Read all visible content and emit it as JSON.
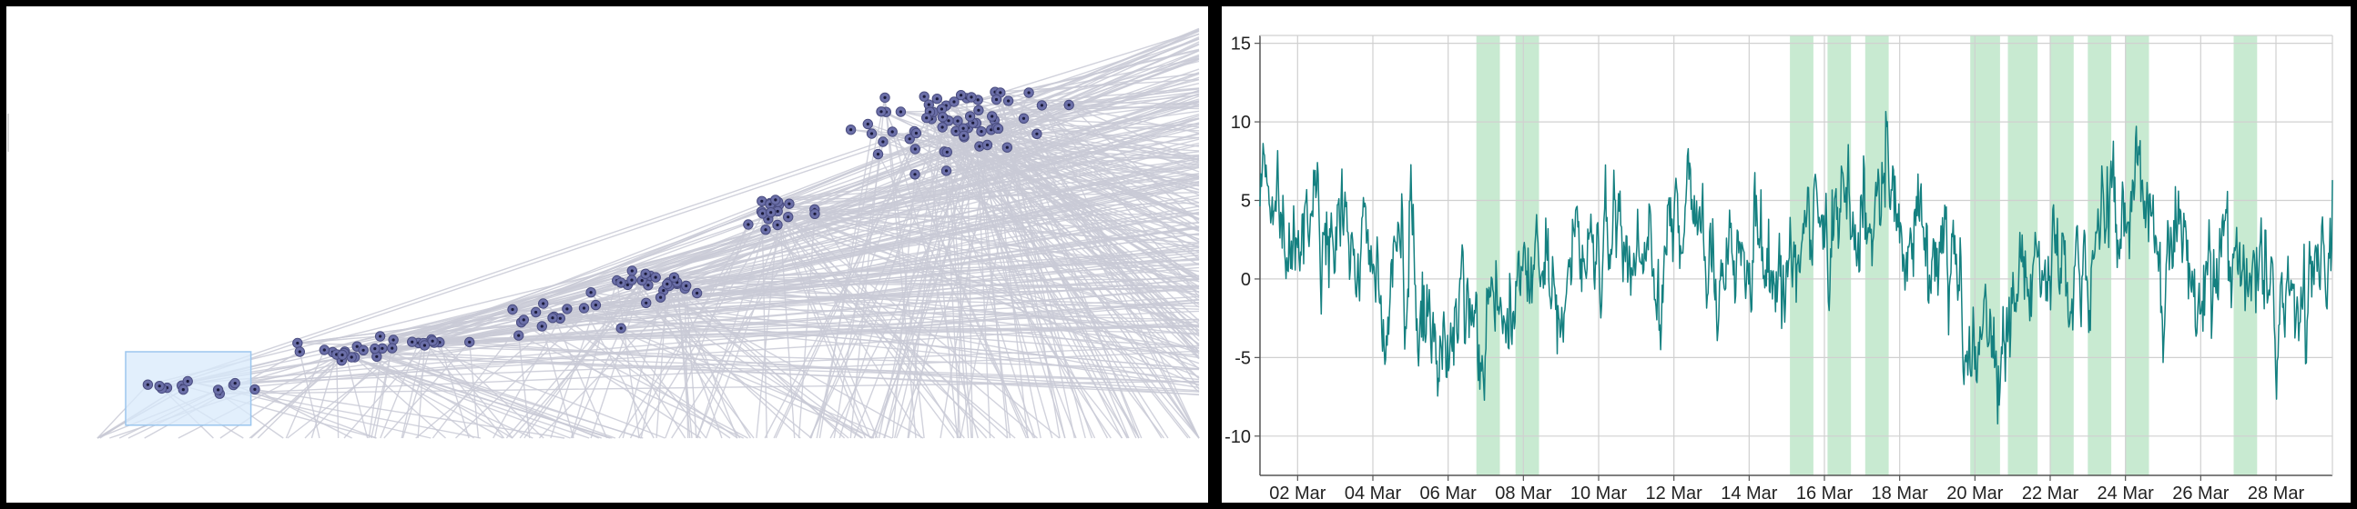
{
  "colors": {
    "background": "#000000",
    "panel": "#ffffff",
    "node_fill": "#6b6fa8",
    "node_center": "#1a1a3a",
    "edge": "#c9cad6",
    "selection_fill": "#d8eafb",
    "selection_stroke": "#9cc6ee",
    "line": "#148080",
    "band": "#b5e3c2",
    "grid": "#d0d0d0",
    "axis": "#555555"
  },
  "chart_data": [
    {
      "type": "scatter",
      "name": "graph-overview",
      "x_range": [
        0,
        100
      ],
      "y_range": [
        0,
        100
      ],
      "selection": {
        "x": [
          10,
          20.5
        ],
        "y": [
          3,
          20
        ]
      },
      "clusters": [
        {
          "cx": 16,
          "cy": 11.5,
          "sx": 3.5,
          "sy": 1.5,
          "n": 12
        },
        {
          "cx": 28,
          "cy": 20,
          "sx": 3.5,
          "sy": 1.8,
          "n": 16
        },
        {
          "cx": 34,
          "cy": 22,
          "sx": 3.0,
          "sy": 2.2,
          "n": 14
        },
        {
          "cx": 45,
          "cy": 28,
          "sx": 3.5,
          "sy": 2.8,
          "n": 14
        },
        {
          "cx": 55,
          "cy": 36,
          "sx": 4.0,
          "sy": 2.8,
          "n": 24
        },
        {
          "cx": 65,
          "cy": 52,
          "sx": 2.5,
          "sy": 3.0,
          "n": 18
        },
        {
          "cx": 79,
          "cy": 73,
          "sx": 6.5,
          "sy": 7.0,
          "n": 65
        }
      ]
    },
    {
      "type": "line",
      "name": "time-series",
      "x_start": "2024-03-01",
      "x_end": "2024-03-29T12:00",
      "ylim": [
        -12.5,
        15.5
      ],
      "yticks": [
        15,
        10,
        5,
        0,
        -5,
        -10
      ],
      "ytick_labels": [
        "15",
        "10",
        "5",
        "0",
        "-5",
        "-10"
      ],
      "xtick_dates": [
        "2024-03-02",
        "2024-03-04",
        "2024-03-06",
        "2024-03-08",
        "2024-03-10",
        "2024-03-12",
        "2024-03-14",
        "2024-03-16",
        "2024-03-18",
        "2024-03-20",
        "2024-03-22",
        "2024-03-24",
        "2024-03-26",
        "2024-03-28"
      ],
      "xtick_labels": [
        "02 Mar",
        "04 Mar",
        "06 Mar",
        "08 Mar",
        "10 Mar",
        "12 Mar",
        "14 Mar",
        "16 Mar",
        "18 Mar",
        "20 Mar",
        "22 Mar",
        "24 Mar",
        "26 Mar",
        "28 Mar"
      ],
      "bands": [
        [
          "2024-03-06T18:00",
          "2024-03-07T09:00"
        ],
        [
          "2024-03-07T19:00",
          "2024-03-08T10:00"
        ],
        [
          "2024-03-15T02:00",
          "2024-03-15T17:00"
        ],
        [
          "2024-03-16T02:00",
          "2024-03-16T17:00"
        ],
        [
          "2024-03-17T02:00",
          "2024-03-17T17:00"
        ],
        [
          "2024-03-19T21:00",
          "2024-03-20T16:00"
        ],
        [
          "2024-03-20T21:00",
          "2024-03-21T16:00"
        ],
        [
          "2024-03-22T00:00",
          "2024-03-22T15:00"
        ],
        [
          "2024-03-23T00:00",
          "2024-03-23T15:00"
        ],
        [
          "2024-03-24T00:00",
          "2024-03-24T15:00"
        ],
        [
          "2024-03-26T21:00",
          "2024-03-27T12:00"
        ]
      ],
      "grid": true,
      "series": [
        {
          "knots": [
            [
              "2024-03-01T00:00",
              2.5
            ],
            [
              "2024-03-01T12:00",
              3.0
            ],
            [
              "2024-03-02T00:00",
              1.5
            ],
            [
              "2024-03-02T12:00",
              4.0
            ],
            [
              "2024-03-03T00:00",
              2.0
            ],
            [
              "2024-03-03T12:00",
              2.5
            ],
            [
              "2024-03-04T00:00",
              1.5
            ],
            [
              "2024-03-04T12:00",
              1.5
            ],
            [
              "2024-03-05T00:00",
              -1.5
            ],
            [
              "2024-03-05T12:00",
              0.0
            ],
            [
              "2024-03-06T00:00",
              -3.5
            ],
            [
              "2024-03-06T12:00",
              -1.5
            ],
            [
              "2024-03-07T00:00",
              -1.0
            ],
            [
              "2024-03-07T12:00",
              -2.0
            ],
            [
              "2024-03-08T00:00",
              1.5
            ],
            [
              "2024-03-08T12:00",
              0.5
            ],
            [
              "2024-03-09T00:00",
              -0.5
            ],
            [
              "2024-03-09T12:00",
              2.5
            ],
            [
              "2024-03-10T00:00",
              3.5
            ],
            [
              "2024-03-10T12:00",
              1.0
            ],
            [
              "2024-03-11T00:00",
              3.0
            ],
            [
              "2024-03-11T12:00",
              1.0
            ],
            [
              "2024-03-12T00:00",
              0.5
            ],
            [
              "2024-03-12T12:00",
              2.5
            ],
            [
              "2024-03-13T00:00",
              0.0
            ],
            [
              "2024-03-13T12:00",
              1.5
            ],
            [
              "2024-03-14T00:00",
              -1.0
            ],
            [
              "2024-03-14T12:00",
              -0.5
            ],
            [
              "2024-03-15T00:00",
              -0.5
            ],
            [
              "2024-03-15T12:00",
              2.5
            ],
            [
              "2024-03-16T00:00",
              4.5
            ],
            [
              "2024-03-16T12:00",
              4.0
            ],
            [
              "2024-03-17T00:00",
              3.0
            ],
            [
              "2024-03-17T12:00",
              5.5
            ],
            [
              "2024-03-18T00:00",
              1.5
            ],
            [
              "2024-03-18T12:00",
              2.0
            ],
            [
              "2024-03-19T00:00",
              0.5
            ],
            [
              "2024-03-19T12:00",
              0.0
            ],
            [
              "2024-03-20T00:00",
              -4.5
            ],
            [
              "2024-03-20T12:00",
              -5.5
            ],
            [
              "2024-03-21T00:00",
              -3.5
            ],
            [
              "2024-03-21T12:00",
              0.0
            ],
            [
              "2024-03-22T00:00",
              2.5
            ],
            [
              "2024-03-22T12:00",
              0.5
            ],
            [
              "2024-03-23T00:00",
              3.0
            ],
            [
              "2024-03-23T12:00",
              5.5
            ],
            [
              "2024-03-24T00:00",
              5.0
            ],
            [
              "2024-03-24T12:00",
              5.5
            ],
            [
              "2024-03-25T00:00",
              2.0
            ],
            [
              "2024-03-25T12:00",
              1.5
            ],
            [
              "2024-03-26T00:00",
              -1.0
            ],
            [
              "2024-03-26T12:00",
              1.0
            ],
            [
              "2024-03-27T00:00",
              -2.0
            ],
            [
              "2024-03-27T12:00",
              0.5
            ],
            [
              "2024-03-28T00:00",
              -1.5
            ],
            [
              "2024-03-28T12:00",
              1.5
            ],
            [
              "2024-03-29T00:00",
              -1.5
            ],
            [
              "2024-03-29T12:00",
              1.5
            ]
          ],
          "noise": 2.6
        }
      ]
    }
  ]
}
